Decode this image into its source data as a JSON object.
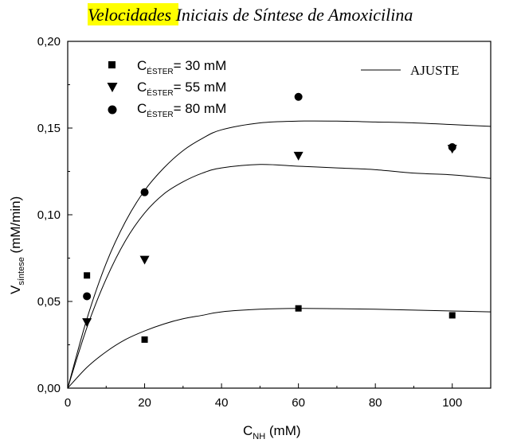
{
  "chart_data": {
    "type": "scatter",
    "title": {
      "highlight": "Velocidade",
      "rest": "s Iniciais de Síntese de Amoxicilina",
      "highlight_color": "#ffff00"
    },
    "xlabel": {
      "main": "C",
      "sub": "NH",
      "unit": " (mM)"
    },
    "ylabel": {
      "main": "V",
      "sub": "síntese",
      "unit": " (mM/min)"
    },
    "xlim": [
      0,
      110
    ],
    "ylim": [
      0,
      0.2
    ],
    "xticks": [
      {
        "value": 0,
        "label": "0"
      },
      {
        "value": 20,
        "label": "20"
      },
      {
        "value": 40,
        "label": "40"
      },
      {
        "value": 60,
        "label": "60"
      },
      {
        "value": 80,
        "label": "80"
      },
      {
        "value": 100,
        "label": "100"
      }
    ],
    "yticks": [
      {
        "value": 0,
        "label": "0,00"
      },
      {
        "value": 0.05,
        "label": "0,05"
      },
      {
        "value": 0.1,
        "label": "0,10"
      },
      {
        "value": 0.15,
        "label": "0,15"
      },
      {
        "value": 0.2,
        "label": "0,20"
      }
    ],
    "grid": false,
    "legend_position": "top-left",
    "series": [
      {
        "name": {
          "main": "C",
          "sub": "ÉSTER",
          "rest": "= 30 mM"
        },
        "marker": "square",
        "points": [
          [
            5,
            0.065
          ],
          [
            20,
            0.028
          ],
          [
            60,
            0.046
          ],
          [
            100,
            0.042
          ]
        ]
      },
      {
        "name": {
          "main": "C",
          "sub": "ÉSTER",
          "rest": "= 55 mM"
        },
        "marker": "triangle-down",
        "points": [
          [
            5,
            0.038
          ],
          [
            20,
            0.074
          ],
          [
            60,
            0.134
          ],
          [
            100,
            0.138
          ]
        ]
      },
      {
        "name": {
          "main": "C",
          "sub": "ÉSTER",
          "rest": "= 80 mM"
        },
        "marker": "circle",
        "points": [
          [
            5,
            0.053
          ],
          [
            20,
            0.113
          ],
          [
            60,
            0.168
          ],
          [
            100,
            0.139
          ]
        ]
      }
    ],
    "fit_label": "AJUSTE",
    "fit_legend_position": "top-right",
    "fits": [
      {
        "x": [
          0,
          5,
          10,
          15,
          20,
          25,
          30,
          35,
          40,
          50,
          60,
          70,
          80,
          90,
          100,
          110
        ],
        "y": [
          0,
          0.012,
          0.021,
          0.028,
          0.033,
          0.037,
          0.04,
          0.042,
          0.044,
          0.0455,
          0.046,
          0.0458,
          0.0455,
          0.045,
          0.0445,
          0.044
        ]
      },
      {
        "x": [
          0,
          5,
          10,
          15,
          20,
          25,
          30,
          35,
          40,
          50,
          60,
          70,
          80,
          90,
          100,
          110
        ],
        "y": [
          0,
          0.035,
          0.063,
          0.085,
          0.101,
          0.112,
          0.119,
          0.124,
          0.127,
          0.129,
          0.128,
          0.127,
          0.126,
          0.124,
          0.123,
          0.121
        ]
      },
      {
        "x": [
          0,
          5,
          10,
          15,
          20,
          25,
          30,
          35,
          40,
          50,
          60,
          70,
          80,
          90,
          100,
          110
        ],
        "y": [
          0,
          0.04,
          0.072,
          0.096,
          0.114,
          0.127,
          0.137,
          0.144,
          0.149,
          0.153,
          0.154,
          0.154,
          0.1535,
          0.153,
          0.152,
          0.151
        ]
      }
    ]
  }
}
